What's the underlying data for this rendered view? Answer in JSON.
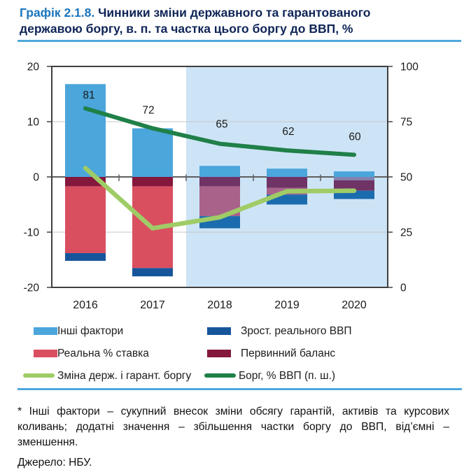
{
  "header": {
    "prefix": "Графік 2.1.8.",
    "title_line1": " Чинники зміни державного та гарантованого",
    "title_line2": "державою боргу, в. п. та частка цього боргу до ВВП, %"
  },
  "colors": {
    "accent_blue": "#1B75BC",
    "title_navy": "#0F2557",
    "rule_blue": "#4FA8DC",
    "forecast_bg": "#CDE4F6",
    "grid": "#C6C6C6",
    "zero_line": "#5F5F5F",
    "border": "#3F3F3F",
    "text": "#1A1A1A",
    "series": {
      "others": "#4BA6DC",
      "real_gdp": "#17559B",
      "real_gdp_f": "#1B6CAE",
      "real_rate": "#D94F60",
      "real_rate_f": "#A9638B",
      "real_rate_2020": "#8183B0",
      "primary_balance": "#84173C",
      "primary_balance_f": "#6F3365",
      "debt_change_line": "#9FCC66",
      "debt_gdp_line": "#1F8048"
    }
  },
  "chart_data": {
    "type": "bar",
    "subtype": "stacked-bar-with-lines",
    "title": "Чинники зміни державного та гарантованого державою боргу, в. п. та частка цього боргу до ВВП, %",
    "categories": [
      "2016",
      "2017",
      "2018",
      "2019",
      "2020"
    ],
    "left_axis": {
      "min": -20,
      "max": 20,
      "ticks": [
        20,
        10,
        0,
        -10,
        -20
      ]
    },
    "right_axis": {
      "min": 0,
      "max": 100,
      "ticks": [
        100,
        75,
        50,
        25,
        0
      ]
    },
    "grid": "horizontal-only",
    "forecast_region": {
      "from_category": "2018",
      "to_category": "2020"
    },
    "bar_series": [
      {
        "name": "Інші фактори",
        "key": "others",
        "values": [
          16.8,
          8.8,
          2.0,
          1.5,
          1.0
        ]
      },
      {
        "name": "Зрост. реального ВВП",
        "key": "real_gdp",
        "values": [
          -1.4,
          -1.5,
          -2.2,
          -1.8,
          -1.5
        ]
      },
      {
        "name": "Реальна % ставка",
        "key": "real_rate",
        "values": [
          -12.1,
          -14.8,
          -5.4,
          -1.2,
          -0.6
        ]
      },
      {
        "name": "Первинний баланс",
        "key": "primary_balance",
        "values": [
          -1.7,
          -1.7,
          -1.7,
          -2.0,
          -1.9
        ]
      }
    ],
    "stacks": [
      {
        "year": "2016",
        "segments": [
          {
            "series": "others",
            "palette": "others",
            "from": 0,
            "to": 16.8
          },
          {
            "series": "primary_balance",
            "palette": "primary_balance",
            "from": 0,
            "to": -1.7
          },
          {
            "series": "real_rate",
            "palette": "real_rate",
            "from": -1.7,
            "to": -13.8
          },
          {
            "series": "real_gdp",
            "palette": "real_gdp",
            "from": -13.8,
            "to": -15.2
          }
        ]
      },
      {
        "year": "2017",
        "segments": [
          {
            "series": "others",
            "palette": "others",
            "from": 0,
            "to": 8.8
          },
          {
            "series": "primary_balance",
            "palette": "primary_balance",
            "from": 0,
            "to": -1.7
          },
          {
            "series": "real_rate",
            "palette": "real_rate",
            "from": -1.7,
            "to": -16.5
          },
          {
            "series": "real_gdp",
            "palette": "real_gdp",
            "from": -16.5,
            "to": -18.0
          }
        ]
      },
      {
        "year": "2018",
        "segments": [
          {
            "series": "others",
            "palette": "others",
            "from": 0,
            "to": 2.0
          },
          {
            "series": "primary_balance",
            "palette": "primary_balance_f",
            "from": 0,
            "to": -1.7
          },
          {
            "series": "real_rate",
            "palette": "real_rate_f",
            "from": -1.7,
            "to": -7.1
          },
          {
            "series": "real_gdp",
            "palette": "real_gdp_f",
            "from": -7.1,
            "to": -9.3
          }
        ]
      },
      {
        "year": "2019",
        "segments": [
          {
            "series": "others",
            "palette": "others",
            "from": 0,
            "to": 1.5
          },
          {
            "series": "primary_balance",
            "palette": "primary_balance_f",
            "from": 0,
            "to": -2.0
          },
          {
            "series": "real_rate",
            "palette": "real_rate_f",
            "from": -2.0,
            "to": -3.2
          },
          {
            "series": "real_gdp",
            "palette": "real_gdp_f",
            "from": -3.2,
            "to": -5.0
          }
        ]
      },
      {
        "year": "2020",
        "segments": [
          {
            "series": "others",
            "palette": "others",
            "from": 0,
            "to": 1.0
          },
          {
            "series": "real_rate",
            "palette": "real_rate_2020",
            "from": 0,
            "to": -0.6
          },
          {
            "series": "primary_balance",
            "palette": "primary_balance_f",
            "from": -0.6,
            "to": -2.5
          },
          {
            "series": "real_gdp",
            "palette": "real_gdp_f",
            "from": -2.5,
            "to": -4.0
          }
        ]
      }
    ],
    "line_series": [
      {
        "name": "Зміна держ. і гарант. боргу",
        "key": "debt_change",
        "axis": "left",
        "palette": "debt_change_line",
        "values": [
          1.6,
          -9.3,
          -7.3,
          -2.6,
          -2.5
        ]
      },
      {
        "name": "Борг, % ВВП (п. ш.)",
        "key": "debt_gdp",
        "axis": "right",
        "palette": "debt_gdp_line",
        "values": [
          81,
          72,
          65,
          62,
          60
        ],
        "data_labels": [
          "81",
          "72",
          "65",
          "62",
          "60"
        ]
      }
    ],
    "legend_position": "bottom"
  },
  "legend": {
    "items": [
      {
        "label": "Інші фактори",
        "type": "bar",
        "color_key": "others"
      },
      {
        "label": "Зрост. реального ВВП",
        "type": "bar",
        "color_key": "real_gdp"
      },
      {
        "label": "Реальна % ставка",
        "type": "bar",
        "color_key": "real_rate"
      },
      {
        "label": "Первинний баланс",
        "type": "bar",
        "color_key": "primary_balance"
      },
      {
        "label": "Зміна держ. і гарант. боргу",
        "type": "line",
        "color_key": "debt_change_line"
      },
      {
        "label": "Борг, % ВВП (п. ш.)",
        "type": "line",
        "color_key": "debt_gdp_line"
      }
    ]
  },
  "footnote": "* Інші фактори – сукупний внесок зміни обсягу гарантій, активів та курсових коливань; додатні значення – збільшення частки боргу до ВВП, від’ємні – зменшення.",
  "source": "Джерело: НБУ."
}
